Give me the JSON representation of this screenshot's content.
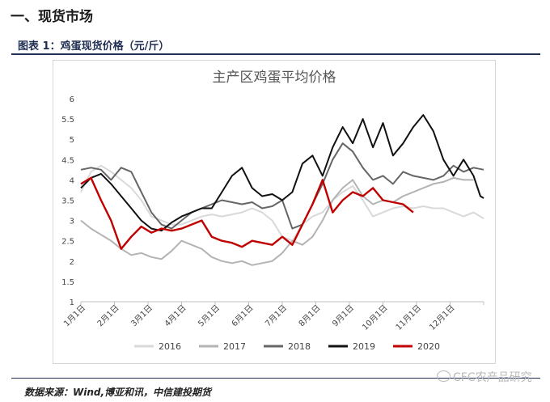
{
  "header": {
    "section_title": "一、现货市场",
    "figure_caption": "图表 1：鸡蛋现货价格（元/斤）"
  },
  "footer": {
    "source": "数据来源：Wind,博亚和讯，中信建投期货",
    "watermark": "CFC农产品研究"
  },
  "chart_data": {
    "type": "line",
    "title": "主产区鸡蛋平均价格",
    "xlabel": "",
    "ylabel": "",
    "ylim": [
      1,
      6
    ],
    "yticks": [
      "1",
      "1.5",
      "2",
      "2.5",
      "3",
      "3.5",
      "4",
      "4.5",
      "5",
      "5.5",
      "6"
    ],
    "xlim": [
      1,
      13
    ],
    "x_tick_labels": [
      "1月1日",
      "2月1日",
      "3月1日",
      "4月1日",
      "5月1日",
      "6月1日",
      "7月1日",
      "8月1日",
      "9月1日",
      "10月1日",
      "11月1日",
      "12月1日"
    ],
    "legend_position": "bottom",
    "grid": false,
    "series": [
      {
        "name": "2016",
        "color": "#d9d9d9",
        "x": [
          1.0,
          1.3,
          1.6,
          1.9,
          2.2,
          2.5,
          2.8,
          3.1,
          3.4,
          3.7,
          4.0,
          4.3,
          4.6,
          4.9,
          5.2,
          5.5,
          5.8,
          6.1,
          6.4,
          6.7,
          7.0,
          7.3,
          7.6,
          7.9,
          8.2,
          8.5,
          8.8,
          9.1,
          9.4,
          9.7,
          10.0,
          10.3,
          10.6,
          10.9,
          11.2,
          11.5,
          11.8,
          12.1,
          12.4,
          12.7,
          13.0
        ],
        "y": [
          3.7,
          4.2,
          4.35,
          4.2,
          4.0,
          3.8,
          3.5,
          3.1,
          3.0,
          2.9,
          2.9,
          3.0,
          3.1,
          3.15,
          3.1,
          3.15,
          3.2,
          3.3,
          3.2,
          3.0,
          2.6,
          2.5,
          2.9,
          3.1,
          3.2,
          3.5,
          3.7,
          3.85,
          3.5,
          3.1,
          3.2,
          3.3,
          3.35,
          3.3,
          3.35,
          3.3,
          3.3,
          3.2,
          3.1,
          3.2,
          3.05
        ]
      },
      {
        "name": "2017",
        "color": "#b3b3b3",
        "x": [
          1.0,
          1.3,
          1.6,
          1.9,
          2.2,
          2.5,
          2.8,
          3.1,
          3.4,
          3.7,
          4.0,
          4.3,
          4.6,
          4.9,
          5.2,
          5.5,
          5.8,
          6.1,
          6.4,
          6.7,
          7.0,
          7.3,
          7.6,
          7.9,
          8.2,
          8.5,
          8.8,
          9.1,
          9.4,
          9.7,
          10.0,
          10.3,
          10.6,
          10.9,
          11.2,
          11.5,
          11.8,
          12.1,
          12.4,
          12.7
        ],
        "y": [
          3.0,
          2.8,
          2.65,
          2.5,
          2.3,
          2.15,
          2.2,
          2.1,
          2.05,
          2.25,
          2.5,
          2.4,
          2.3,
          2.1,
          2.0,
          1.95,
          2.0,
          1.9,
          1.95,
          2.0,
          2.2,
          2.5,
          2.4,
          2.6,
          3.0,
          3.5,
          3.8,
          4.0,
          3.6,
          3.4,
          3.5,
          3.45,
          3.6,
          3.7,
          3.8,
          3.9,
          3.95,
          4.05,
          4.0,
          4.0
        ]
      },
      {
        "name": "2018",
        "color": "#666666",
        "x": [
          1.0,
          1.3,
          1.6,
          1.9,
          2.2,
          2.5,
          2.8,
          3.1,
          3.4,
          3.7,
          4.0,
          4.3,
          4.6,
          4.9,
          5.2,
          5.5,
          5.8,
          6.1,
          6.4,
          6.7,
          7.0,
          7.3,
          7.6,
          7.9,
          8.2,
          8.5,
          8.8,
          9.1,
          9.4,
          9.7,
          10.0,
          10.3,
          10.6,
          10.9,
          11.2,
          11.5,
          11.8,
          12.1,
          12.4,
          12.7,
          13.0
        ],
        "y": [
          4.25,
          4.3,
          4.25,
          4.0,
          4.3,
          4.2,
          3.7,
          3.2,
          2.9,
          2.8,
          3.0,
          3.2,
          3.3,
          3.4,
          3.5,
          3.45,
          3.4,
          3.45,
          3.3,
          3.35,
          3.5,
          2.8,
          2.9,
          3.4,
          3.9,
          4.5,
          4.9,
          4.7,
          4.3,
          4.0,
          4.1,
          3.9,
          4.2,
          4.1,
          4.05,
          4.0,
          4.1,
          4.35,
          4.2,
          4.3,
          4.25
        ]
      },
      {
        "name": "2019",
        "color": "#111111",
        "x": [
          1.0,
          1.3,
          1.6,
          1.9,
          2.2,
          2.5,
          2.8,
          3.1,
          3.4,
          3.7,
          4.0,
          4.3,
          4.6,
          4.9,
          5.2,
          5.5,
          5.8,
          6.1,
          6.4,
          6.7,
          7.0,
          7.3,
          7.6,
          7.9,
          8.2,
          8.5,
          8.8,
          9.1,
          9.4,
          9.7,
          10.0,
          10.3,
          10.6,
          10.9,
          11.2,
          11.5,
          11.8,
          12.1,
          12.4,
          12.7,
          12.9,
          13.0
        ],
        "y": [
          3.8,
          4.05,
          4.15,
          3.9,
          3.6,
          3.3,
          3.0,
          2.8,
          2.75,
          2.95,
          3.1,
          3.2,
          3.3,
          3.3,
          3.7,
          4.1,
          4.3,
          3.8,
          3.6,
          3.65,
          3.5,
          3.7,
          4.4,
          4.6,
          4.1,
          4.8,
          5.3,
          4.9,
          5.5,
          4.8,
          5.4,
          4.6,
          4.9,
          5.3,
          5.6,
          5.2,
          4.5,
          4.1,
          4.5,
          4.1,
          3.6,
          3.55
        ]
      },
      {
        "name": "2020",
        "color": "#c00000",
        "x": [
          1.0,
          1.3,
          1.6,
          1.9,
          2.2,
          2.5,
          2.8,
          3.1,
          3.4,
          3.7,
          4.0,
          4.3,
          4.6,
          4.9,
          5.2,
          5.5,
          5.8,
          6.1,
          6.4,
          6.7,
          7.0,
          7.3,
          7.6,
          7.9,
          8.2,
          8.5,
          8.8,
          9.1,
          9.4,
          9.7,
          10.0,
          10.3,
          10.6,
          10.9
        ],
        "y": [
          3.9,
          4.05,
          3.5,
          3.0,
          2.3,
          2.6,
          2.85,
          2.7,
          2.8,
          2.75,
          2.8,
          2.9,
          3.0,
          2.6,
          2.5,
          2.45,
          2.35,
          2.5,
          2.45,
          2.4,
          2.6,
          2.4,
          2.9,
          3.4,
          4.0,
          3.2,
          3.5,
          3.7,
          3.6,
          3.8,
          3.5,
          3.45,
          3.4,
          3.2
        ]
      }
    ]
  }
}
